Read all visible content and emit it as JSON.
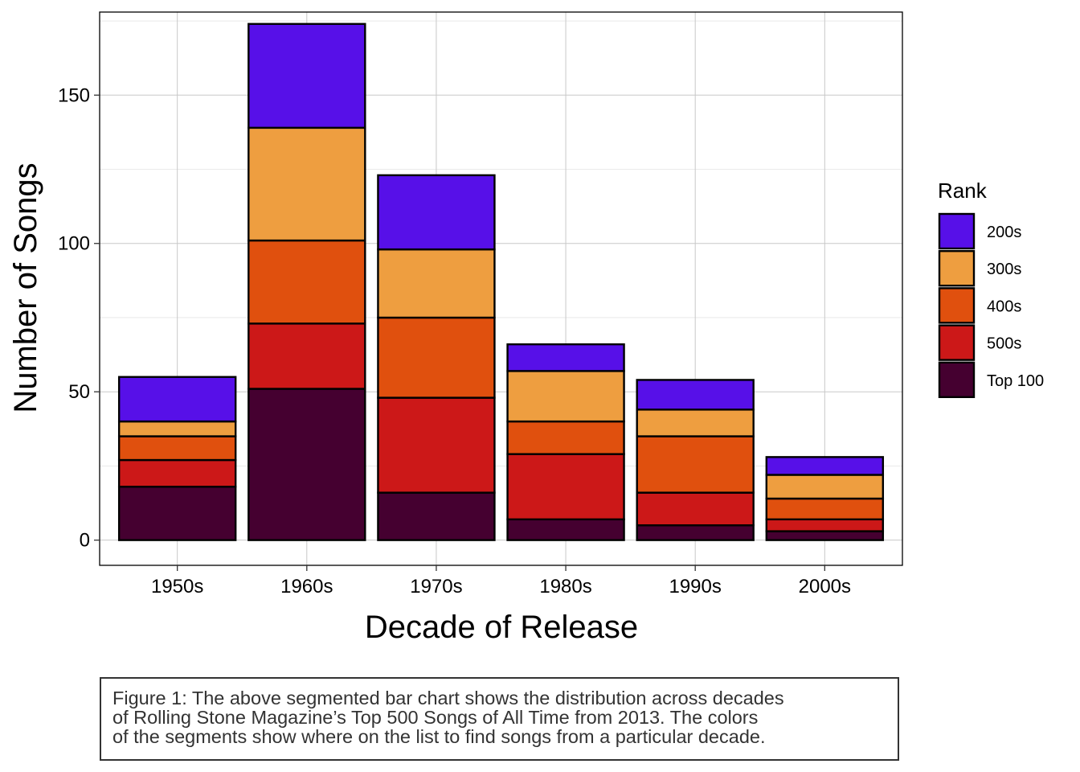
{
  "chart_data": {
    "type": "bar",
    "stacked": true,
    "title": "",
    "xlabel": "Decade of Release",
    "ylabel": "Number of Songs",
    "ylim": [
      -8.5,
      178
    ],
    "yticks": [
      0,
      50,
      100,
      150
    ],
    "categories": [
      "1950s",
      "1960s",
      "1970s",
      "1980s",
      "1990s",
      "2000s"
    ],
    "series": [
      {
        "name": "Top 100",
        "color": "#450030",
        "values": [
          18,
          51,
          16,
          7,
          5,
          3
        ]
      },
      {
        "name": "500s",
        "color": "#cc1818",
        "values": [
          9,
          22,
          32,
          22,
          11,
          4
        ]
      },
      {
        "name": "400s",
        "color": "#e0500e",
        "values": [
          8,
          28,
          27,
          11,
          19,
          7
        ]
      },
      {
        "name": "300s",
        "color": "#ee9e40",
        "values": [
          5,
          38,
          23,
          17,
          9,
          8
        ]
      },
      {
        "name": "200s",
        "color": "#5710e8",
        "values": [
          15,
          35,
          25,
          9,
          10,
          6
        ]
      }
    ],
    "legend": {
      "title": "Rank",
      "placement": "right",
      "order": [
        "200s",
        "300s",
        "400s",
        "500s",
        "Top 100"
      ]
    },
    "grid": true
  },
  "caption": {
    "lines": [
      "Figure 1: The above segmented bar chart shows the distribution across decades",
      "of Rolling Stone Magazine’s Top 500 Songs of All Time from 2013. The colors",
      "of the segments show where on the list to find songs from a particular decade."
    ]
  }
}
